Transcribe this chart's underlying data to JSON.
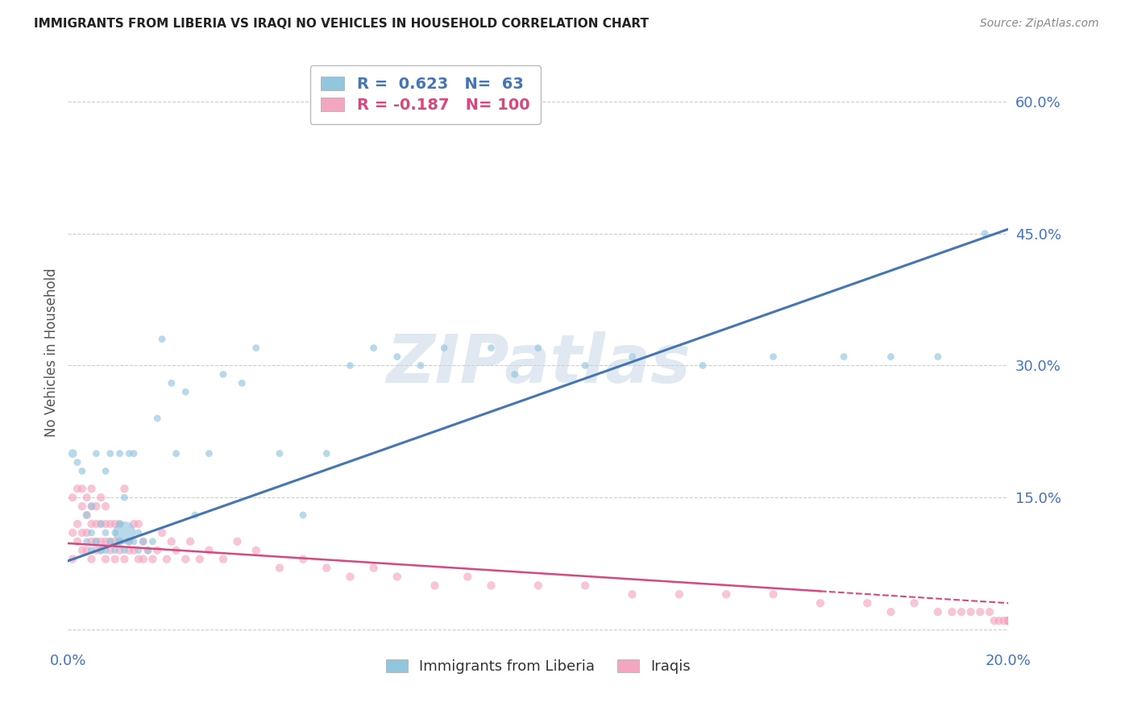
{
  "title": "IMMIGRANTS FROM LIBERIA VS IRAQI NO VEHICLES IN HOUSEHOLD CORRELATION CHART",
  "source": "Source: ZipAtlas.com",
  "ylabel": "No Vehicles in Household",
  "xlim": [
    0.0,
    0.2
  ],
  "ylim": [
    -0.02,
    0.65
  ],
  "liberia_R": 0.623,
  "liberia_N": 63,
  "iraqi_R": -0.187,
  "iraqi_N": 100,
  "scatter_color_liberia": "#92c5de",
  "scatter_color_iraqi": "#f4a6c0",
  "line_color_liberia": "#4575b4",
  "line_color_iraqi": "#d6487e",
  "watermark": "ZIPatlas",
  "background_color": "#ffffff",
  "liberia_line_x0": 0.0,
  "liberia_line_y0": 0.078,
  "liberia_line_x1": 0.2,
  "liberia_line_y1": 0.455,
  "iraqi_line_x0": 0.0,
  "iraqi_line_y0": 0.098,
  "iraqi_line_x1": 0.2,
  "iraqi_line_y1": 0.03,
  "liberia_scatter_x": [
    0.001,
    0.002,
    0.003,
    0.004,
    0.004,
    0.005,
    0.005,
    0.005,
    0.006,
    0.006,
    0.007,
    0.007,
    0.008,
    0.008,
    0.008,
    0.009,
    0.009,
    0.01,
    0.01,
    0.011,
    0.011,
    0.011,
    0.012,
    0.012,
    0.012,
    0.013,
    0.013,
    0.014,
    0.014,
    0.015,
    0.015,
    0.016,
    0.017,
    0.018,
    0.019,
    0.02,
    0.022,
    0.023,
    0.025,
    0.027,
    0.03,
    0.033,
    0.037,
    0.04,
    0.045,
    0.05,
    0.055,
    0.06,
    0.065,
    0.07,
    0.075,
    0.08,
    0.09,
    0.095,
    0.1,
    0.11,
    0.12,
    0.135,
    0.15,
    0.165,
    0.175,
    0.185,
    0.195
  ],
  "liberia_scatter_y": [
    0.2,
    0.19,
    0.18,
    0.1,
    0.13,
    0.09,
    0.11,
    0.14,
    0.1,
    0.2,
    0.09,
    0.12,
    0.09,
    0.11,
    0.18,
    0.1,
    0.2,
    0.09,
    0.11,
    0.1,
    0.12,
    0.2,
    0.09,
    0.11,
    0.15,
    0.1,
    0.2,
    0.1,
    0.2,
    0.09,
    0.11,
    0.1,
    0.09,
    0.1,
    0.24,
    0.33,
    0.28,
    0.2,
    0.27,
    0.13,
    0.2,
    0.29,
    0.28,
    0.32,
    0.2,
    0.13,
    0.2,
    0.3,
    0.32,
    0.31,
    0.3,
    0.32,
    0.32,
    0.29,
    0.32,
    0.3,
    0.31,
    0.3,
    0.31,
    0.31,
    0.31,
    0.31,
    0.45
  ],
  "liberia_scatter_sizes": [
    60,
    40,
    40,
    40,
    40,
    40,
    40,
    40,
    40,
    40,
    40,
    40,
    40,
    40,
    40,
    40,
    40,
    40,
    40,
    40,
    40,
    40,
    40,
    40,
    40,
    40,
    40,
    40,
    40,
    40,
    40,
    40,
    40,
    40,
    40,
    40,
    40,
    40,
    40,
    40,
    40,
    40,
    40,
    40,
    40,
    40,
    40,
    40,
    40,
    40,
    40,
    40,
    40,
    40,
    40,
    40,
    40,
    40,
    40,
    40,
    40,
    40,
    40
  ],
  "liberia_scatter_sizes_special": [
    [
      23,
      400
    ]
  ],
  "iraqi_scatter_x": [
    0.001,
    0.001,
    0.001,
    0.002,
    0.002,
    0.002,
    0.003,
    0.003,
    0.003,
    0.003,
    0.004,
    0.004,
    0.004,
    0.004,
    0.005,
    0.005,
    0.005,
    0.005,
    0.005,
    0.006,
    0.006,
    0.006,
    0.006,
    0.007,
    0.007,
    0.007,
    0.007,
    0.008,
    0.008,
    0.008,
    0.008,
    0.009,
    0.009,
    0.009,
    0.01,
    0.01,
    0.01,
    0.011,
    0.011,
    0.011,
    0.012,
    0.012,
    0.013,
    0.013,
    0.014,
    0.014,
    0.015,
    0.015,
    0.016,
    0.016,
    0.017,
    0.018,
    0.019,
    0.02,
    0.021,
    0.022,
    0.023,
    0.025,
    0.026,
    0.028,
    0.03,
    0.033,
    0.036,
    0.04,
    0.045,
    0.05,
    0.055,
    0.06,
    0.065,
    0.07,
    0.078,
    0.085,
    0.09,
    0.1,
    0.11,
    0.12,
    0.13,
    0.14,
    0.15,
    0.16,
    0.17,
    0.175,
    0.18,
    0.185,
    0.188,
    0.19,
    0.192,
    0.194,
    0.196,
    0.197,
    0.198,
    0.199,
    0.2,
    0.2,
    0.2,
    0.2,
    0.2,
    0.2,
    0.2,
    0.2
  ],
  "iraqi_scatter_y": [
    0.08,
    0.11,
    0.15,
    0.1,
    0.12,
    0.16,
    0.09,
    0.11,
    0.14,
    0.16,
    0.09,
    0.11,
    0.13,
    0.15,
    0.08,
    0.1,
    0.12,
    0.14,
    0.16,
    0.09,
    0.1,
    0.12,
    0.14,
    0.09,
    0.1,
    0.12,
    0.15,
    0.08,
    0.1,
    0.12,
    0.14,
    0.09,
    0.1,
    0.12,
    0.08,
    0.1,
    0.12,
    0.09,
    0.1,
    0.12,
    0.08,
    0.16,
    0.09,
    0.1,
    0.09,
    0.12,
    0.08,
    0.12,
    0.08,
    0.1,
    0.09,
    0.08,
    0.09,
    0.11,
    0.08,
    0.1,
    0.09,
    0.08,
    0.1,
    0.08,
    0.09,
    0.08,
    0.1,
    0.09,
    0.07,
    0.08,
    0.07,
    0.06,
    0.07,
    0.06,
    0.05,
    0.06,
    0.05,
    0.05,
    0.05,
    0.04,
    0.04,
    0.04,
    0.04,
    0.03,
    0.03,
    0.02,
    0.03,
    0.02,
    0.02,
    0.02,
    0.02,
    0.02,
    0.02,
    0.01,
    0.01,
    0.01,
    0.01,
    0.01,
    0.01,
    0.01,
    0.01,
    0.01,
    0.01,
    0.01
  ]
}
